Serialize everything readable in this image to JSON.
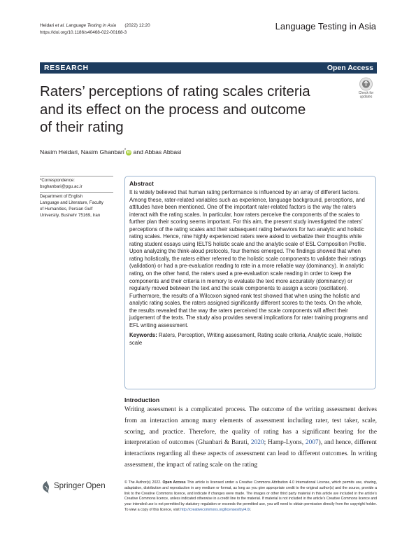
{
  "header": {
    "citation_author": "Heidari ",
    "citation_etal": "et al. Language Testing in Asia",
    "citation_year": "       (2022) 12:20",
    "doi": "https://doi.org/10.1186/s40468-022-00168-3",
    "journal": "Language Testing in Asia"
  },
  "band": {
    "label": "RESEARCH",
    "access": "Open Access"
  },
  "badge": {
    "line1": "Check for",
    "line2": "updates"
  },
  "title": [
    "Raters’ perceptions of rating scales criteria",
    "and its effect on the process and outcome",
    "of their rating"
  ],
  "authors": {
    "a1": "Nasim Heidari, Nasim Ghanbari",
    "star": "*",
    "orcid": "iD",
    "a2": " and Abbas Abbasi"
  },
  "sidebar": {
    "corr_label": "*Correspondence:",
    "corr_email": "bsghanbari@pgu.ac.ir",
    "affil": [
      "Department of English",
      "Language and Literature, Faculty",
      "of Humanities, Persian Gulf",
      "University, Bushehr 75169, Iran"
    ]
  },
  "abstract": {
    "heading": "Abstract",
    "text": "It is widely believed that human rating performance is influenced by an array of different factors. Among these, rater-related variables such as experience, language background, perceptions, and attitudes have been mentioned. One of the important rater-related factors is the way the raters interact with the rating scales. In particular, how raters perceive the components of the scales to further plan their scoring seems important. For this aim, the present study investigated the raters’ perceptions of the rating scales and their subsequent rating behaviors for two analytic and holistic rating scales. Hence, nine highly experienced raters were asked to verbalize their thoughts while rating student essays using IELTS holistic scale and the analytic scale of ESL Composition Profile. Upon analyzing the think-aloud protocols, four themes emerged. The findings showed that when rating holistically, the raters either referred to the holistic scale components to validate their ratings (validation) or had a pre-evaluation reading to rate in a more reliable way (dominancy). In analytic rating, on the other hand, the raters used a pre-evaluation scale reading in order to keep the components and their criteria in memory to evaluate the text more accurately (dominancy) or regularly moved between the text and the scale components to assign a score (oscillation). Furthermore, the results of a Wilcoxon signed-rank test showed that when using the holistic and analytic rating scales, the raters assigned significantly different scores to the texts. On the whole, the results revealed that the way the raters perceived the scale components will affect their judgement of the texts. The study also provides several implications for rater training programs and EFL writing assessment.",
    "kw_label": "Keywords:",
    "kw_text": " Raters, Perception, Writing assessment, Rating scale criteria, Analytic scale, Holistic scale"
  },
  "intro": {
    "heading": "Introduction",
    "p1": "Writing assessment is a complicated process. The outcome of the writing assessment derives from an interaction among many elements of assessment including rater, test taker, scale, scoring, and practice. Therefore, the quality of rating has a significant bearing for the interpretation of outcomes (Ghanbari & Barati, ",
    "ref1": "2020",
    "p2": "; Hamp-Lyons, ",
    "ref2": "2007",
    "p3": "), and hence, different interactions regarding all these aspects of assessment can lead to different outcomes. In writing assessment, the impact of rating scale on the rating"
  },
  "publisher": {
    "name": "Springer",
    "suffix": "Open"
  },
  "license": {
    "t1": "© The Author(s) 2022. ",
    "oa": "Open Access",
    "t2": " This article is licensed under a Creative Commons Attribution 4.0 International License, which permits use, sharing, adaptation, distribution and reproduction in any medium or format, as long as you give appropriate credit to the original author(s) and the source, provide a link to the Creative Commons licence, and indicate if changes were made. The images or other third party material in this article are included in the article’s Creative Commons licence, unless indicated otherwise in a credit line to the material. If material is not included in the article’s Creative Commons licence and your intended use is not permitted by statutory regulation or exceeds the permitted use, you will need to obtain permission directly from the copyright holder. To view a copy of this licence, visit ",
    "url": "http://creativecommons.org/licenses/by/4.0/",
    "t3": "."
  },
  "colors": {
    "band": "#1d3c5e",
    "box_border": "#9cb5d0",
    "link": "#2c5aa0",
    "orcid": "#a6ce39"
  }
}
